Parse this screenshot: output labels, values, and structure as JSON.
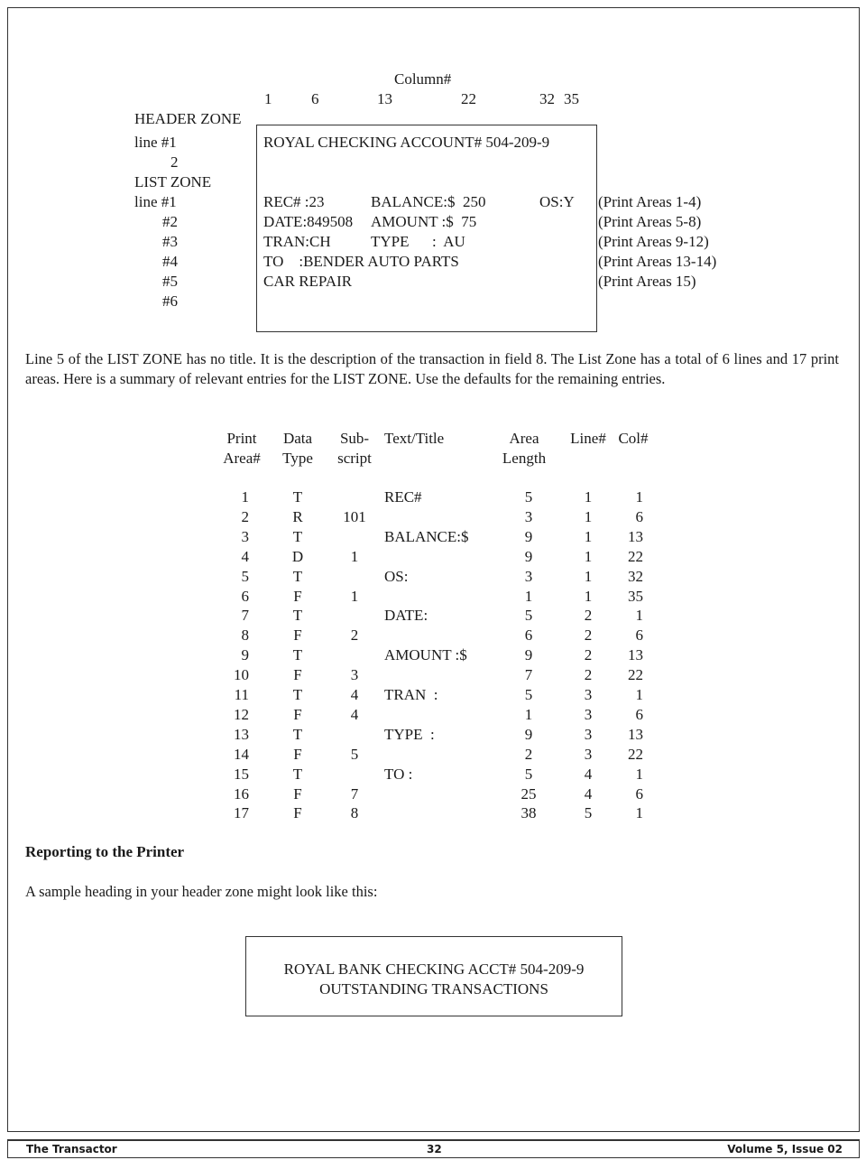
{
  "diagram": {
    "column_label": "Column#",
    "column_numbers": [
      "1",
      "6",
      "13",
      "22",
      "32",
      "35"
    ],
    "header_zone_label": "HEADER ZONE",
    "header_lines": [
      "line #1",
      "2"
    ],
    "list_zone_label": "LIST ZONE",
    "list_lines": [
      "line #1",
      "#2",
      "#3",
      "#4",
      "#5",
      "#6"
    ],
    "screen_header": "ROYAL CHECKING ACCOUNT# 504-209-9",
    "screen_rows": [
      [
        "REC# :23",
        "BALANCE:$  250",
        "OS:Y"
      ],
      [
        "DATE:849508",
        "AMOUNT :$  75",
        ""
      ],
      [
        "TRAN:CH",
        "TYPE      :  AU",
        ""
      ],
      [
        "TO    :BENDER AUTO PARTS",
        "",
        ""
      ],
      [
        "CAR REPAIR",
        "",
        ""
      ]
    ],
    "notes": [
      "(Print Areas 1-4)",
      "(Print Areas 5-8)",
      "(Print Areas 9-12)",
      "(Print Areas 13-14)",
      "(Print Areas 15)"
    ]
  },
  "paragraph1": "Line 5 of the LIST ZONE has no title. It is the description of the transaction in field 8. The List Zone has a total of 6 lines and 17 print areas. Here is a summary of relevant entries for the LIST ZONE. Use the defaults for the remaining entries.",
  "table": {
    "headers": [
      [
        "Print",
        "Area#"
      ],
      [
        "Data",
        "Type"
      ],
      [
        "Sub-",
        "script"
      ],
      [
        "Text/Title",
        ""
      ],
      [
        "Area",
        "Length"
      ],
      [
        "Line#",
        ""
      ],
      [
        "Col#",
        ""
      ]
    ],
    "rows": [
      [
        "1",
        "T",
        "",
        "REC#",
        "5",
        "1",
        "1"
      ],
      [
        "2",
        "R",
        "101",
        "",
        "3",
        "1",
        "6"
      ],
      [
        "3",
        "T",
        "",
        "BALANCE:$",
        "9",
        "1",
        "13"
      ],
      [
        "4",
        "D",
        "1",
        "",
        "9",
        "1",
        "22"
      ],
      [
        "5",
        "T",
        "",
        "OS:",
        "3",
        "1",
        "32"
      ],
      [
        "6",
        "F",
        "1",
        "",
        "1",
        "1",
        "35"
      ],
      [
        "7",
        "T",
        "",
        "DATE:",
        "5",
        "2",
        "1"
      ],
      [
        "8",
        "F",
        "2",
        "",
        "6",
        "2",
        "6"
      ],
      [
        "9",
        "T",
        "",
        "AMOUNT :$",
        "9",
        "2",
        "13"
      ],
      [
        "10",
        "F",
        "3",
        "",
        "7",
        "2",
        "22"
      ],
      [
        "11",
        "T",
        "4",
        "TRAN  :",
        "5",
        "3",
        "1"
      ],
      [
        "12",
        "F",
        "4",
        "",
        "1",
        "3",
        "6"
      ],
      [
        "13",
        "T",
        "",
        "TYPE  :",
        "9",
        "3",
        "13"
      ],
      [
        "14",
        "F",
        "5",
        "",
        "2",
        "3",
        "22"
      ],
      [
        "15",
        "T",
        "",
        "TO :",
        "5",
        "4",
        "1"
      ],
      [
        "16",
        "F",
        "7",
        "",
        "25",
        "4",
        "6"
      ],
      [
        "17",
        "F",
        "8",
        "",
        "38",
        "5",
        "1"
      ]
    ]
  },
  "section_heading": "Reporting to the Printer",
  "paragraph2": "A sample heading in your header zone might look like this:",
  "sample_box": [
    "ROYAL BANK CHECKING ACCT# 504-209-9",
    "OUTSTANDING TRANSACTIONS"
  ],
  "footer": {
    "left": "The Transactor",
    "center": "32",
    "right": "Volume 5, Issue 02"
  }
}
